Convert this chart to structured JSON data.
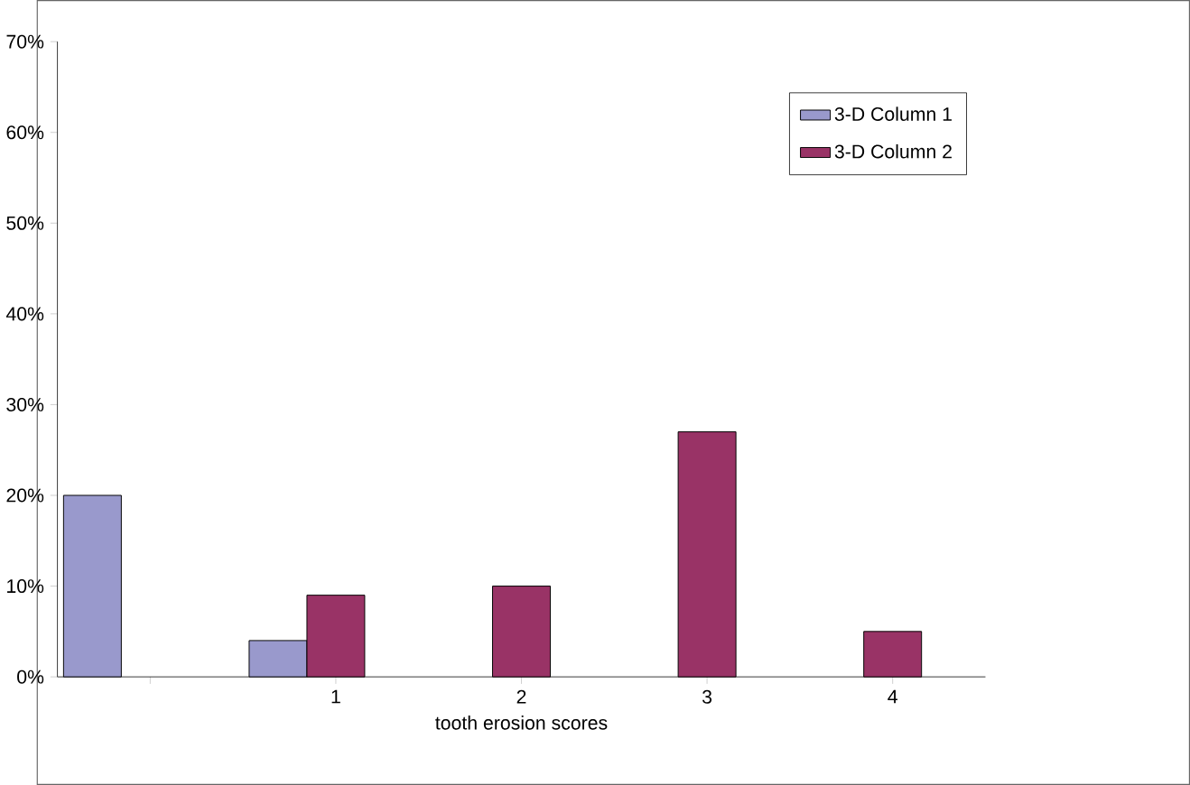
{
  "chart_data": {
    "type": "bar",
    "xlabel": "tooth erosion scores",
    "categories": [
      null,
      "1",
      "2",
      "3",
      "4"
    ],
    "series": [
      {
        "name": "3-D Column 1",
        "color": "#9999cc",
        "values": [
          20,
          4,
          null,
          null,
          null
        ]
      },
      {
        "name": "3-D Column 2",
        "color": "#993366",
        "values": [
          null,
          9,
          10,
          27,
          5
        ]
      },
      {
        "color": "#ffffcc",
        "values": [
          null,
          null,
          null,
          null,
          null
        ]
      }
    ],
    "ylim": [
      0,
      70
    ],
    "yticks": [
      {
        "value": 0,
        "label": "0%"
      },
      {
        "value": 10,
        "label": "10%"
      },
      {
        "value": 20,
        "label": "20%"
      },
      {
        "value": 30,
        "label": "30%"
      },
      {
        "value": 40,
        "label": "40%"
      },
      {
        "value": 50,
        "label": "50%"
      },
      {
        "value": 60,
        "label": "60%"
      },
      {
        "value": 70,
        "label": "70%"
      }
    ],
    "legend": "top right",
    "grid": false
  }
}
